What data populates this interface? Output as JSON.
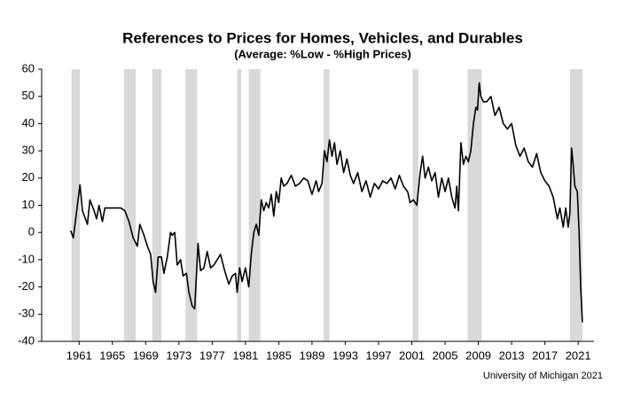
{
  "chart_data": {
    "type": "line",
    "title": "References to Prices for Homes, Vehicles, and Durables",
    "subtitle": "(Average:  %Low - %High Prices)",
    "source": "University of Michigan 2021",
    "xlim": [
      1956.5,
      2022.9
    ],
    "xticks": [
      1961,
      1965,
      1969,
      1973,
      1977,
      1981,
      1985,
      1989,
      1993,
      1997,
      2001,
      2005,
      2009,
      2013,
      2017,
      2021
    ],
    "ylim": [
      -40,
      60
    ],
    "yticks": [
      -40,
      -30,
      -20,
      -10,
      0,
      10,
      20,
      30,
      40,
      50,
      60
    ],
    "shaded_periods": [
      [
        1960.1,
        1961.1
      ],
      [
        1966.4,
        1967.8
      ],
      [
        1969.8,
        1970.9
      ],
      [
        1973.8,
        1975.2
      ],
      [
        1980.0,
        1980.5
      ],
      [
        1981.4,
        1982.8
      ],
      [
        1990.4,
        1991.1
      ],
      [
        2001.1,
        2001.8
      ],
      [
        2007.7,
        2009.4
      ],
      [
        2020.0,
        2021.5
      ]
    ],
    "shade_color": "#d9d9d9",
    "series": [
      {
        "name": "Average",
        "color": "#000000",
        "x": [
          1960.0,
          1960.3,
          1960.8,
          1961.1,
          1961.4,
          1962,
          1962.3,
          1962.8,
          1963.1,
          1963.4,
          1963.8,
          1964.1,
          1965,
          1966,
          1966.5,
          1967,
          1967.5,
          1968,
          1968.3,
          1968.8,
          1969.2,
          1969.6,
          1969.9,
          1970.2,
          1970.5,
          1970.9,
          1971.2,
          1971.6,
          1972,
          1972.2,
          1972.5,
          1972.8,
          1973.2,
          1973.5,
          1973.9,
          1974.2,
          1974.6,
          1974.9,
          1975.3,
          1975.6,
          1976,
          1976.4,
          1976.8,
          1977.2,
          1977.6,
          1978,
          1978.5,
          1979,
          1979.4,
          1979.8,
          1980.0,
          1980.3,
          1980.6,
          1981,
          1981.4,
          1981.7,
          1982,
          1982.3,
          1982.6,
          1982.9,
          1983.2,
          1983.5,
          1983.8,
          1984.1,
          1984.4,
          1984.7,
          1985,
          1985.3,
          1985.6,
          1986,
          1986.5,
          1987,
          1987.5,
          1988,
          1988.5,
          1989,
          1989.5,
          1989.8,
          1990.2,
          1990.5,
          1990.8,
          1991.1,
          1991.4,
          1991.7,
          1992,
          1992.4,
          1992.8,
          1993.2,
          1993.6,
          1994,
          1994.5,
          1995,
          1995.5,
          1996,
          1996.5,
          1997,
          1997.5,
          1998,
          1998.5,
          1999,
          1999.5,
          2000,
          2000.5,
          2000.8,
          2001.2,
          2001.6,
          2002,
          2002.3,
          2002.6,
          2003,
          2003.4,
          2003.8,
          2004.2,
          2004.6,
          2005,
          2005.4,
          2005.8,
          2006.2,
          2006.4,
          2006.6,
          2006.9,
          2007.2,
          2007.5,
          2007.8,
          2008.1,
          2008.4,
          2008.7,
          2008.9,
          2009.1,
          2009.3,
          2009.6,
          2010,
          2010.5,
          2011,
          2011.5,
          2012,
          2012.5,
          2013,
          2013.5,
          2014,
          2014.5,
          2015,
          2015.5,
          2016,
          2016.5,
          2017,
          2017.5,
          2018,
          2018.5,
          2018.8,
          2019.2,
          2019.5,
          2019.8,
          2020.0,
          2020.2,
          2020.4,
          2020.6,
          2020.9,
          2021.1,
          2021.3,
          2021.5
        ],
        "values": [
          0.7,
          -2,
          10,
          17.5,
          8,
          3,
          12,
          8,
          5,
          10,
          4,
          9,
          9,
          9,
          8,
          4,
          -2,
          -5,
          3,
          -1,
          -5,
          -8,
          -18,
          -22,
          -9,
          -9,
          -15,
          -9,
          0,
          -1,
          0,
          -12,
          -10,
          -16,
          -15,
          -22,
          -27,
          -28,
          -4,
          -14,
          -13,
          -7,
          -13,
          -12,
          -10,
          -8,
          -14,
          -19,
          -16,
          -15,
          -22,
          -13,
          -18,
          -13,
          -20,
          -8,
          0,
          3,
          -1,
          12,
          8,
          11,
          9,
          14,
          6,
          15,
          11,
          20,
          17,
          18,
          21,
          17,
          18,
          20,
          19,
          14,
          19,
          15,
          18,
          30,
          26,
          34,
          28,
          33,
          25,
          30,
          22,
          27,
          21,
          18,
          22,
          15,
          19,
          13,
          18,
          16,
          19,
          18,
          20,
          16,
          21,
          17,
          15,
          11,
          12,
          10,
          22,
          28,
          20,
          24,
          19,
          22,
          13,
          20,
          15,
          20,
          13,
          9,
          17,
          8,
          33,
          25,
          28,
          26,
          30,
          40,
          46,
          45,
          55,
          50,
          48,
          48,
          50,
          43,
          46,
          40,
          38,
          40,
          32,
          28,
          31,
          26,
          24,
          29,
          22,
          19,
          17,
          13,
          5,
          9,
          2,
          9,
          2,
          7,
          31,
          25,
          17,
          15,
          1,
          -20,
          -33
        ]
      }
    ]
  }
}
